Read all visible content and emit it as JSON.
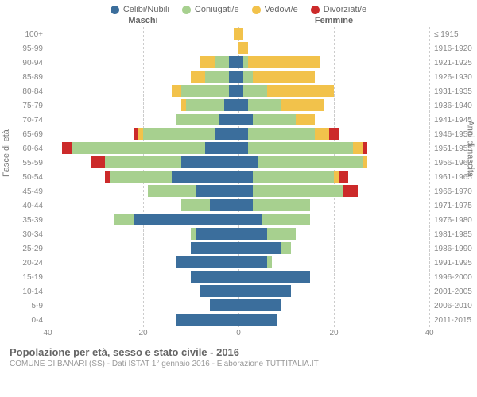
{
  "legend": [
    {
      "label": "Celibi/Nubili",
      "color": "#3b6e9c"
    },
    {
      "label": "Coniugati/e",
      "color": "#a7d08f"
    },
    {
      "label": "Vedovi/e",
      "color": "#f2c24b"
    },
    {
      "label": "Divorziati/e",
      "color": "#cc2a2a"
    }
  ],
  "gender_labels": {
    "male": "Maschi",
    "female": "Femmine"
  },
  "axis_labels": {
    "left": "Fasce di età",
    "right": "Anni di nascita"
  },
  "xaxis": {
    "max": 40,
    "ticks": [
      40,
      20,
      0,
      20,
      40
    ]
  },
  "colors": {
    "celibi": "#3b6e9c",
    "coniugati": "#a7d08f",
    "vedovi": "#f2c24b",
    "divorziati": "#cc2a2a",
    "grid": "#cccccc",
    "bg": "#ffffff"
  },
  "rows": [
    {
      "age": "100+",
      "birth": "≤ 1915",
      "m": {
        "c": 0,
        "g": 0,
        "v": 1,
        "d": 0
      },
      "f": {
        "c": 0,
        "g": 0,
        "v": 1,
        "d": 0
      }
    },
    {
      "age": "95-99",
      "birth": "1916-1920",
      "m": {
        "c": 0,
        "g": 0,
        "v": 0,
        "d": 0
      },
      "f": {
        "c": 0,
        "g": 0,
        "v": 2,
        "d": 0
      }
    },
    {
      "age": "90-94",
      "birth": "1921-1925",
      "m": {
        "c": 2,
        "g": 3,
        "v": 3,
        "d": 0
      },
      "f": {
        "c": 1,
        "g": 1,
        "v": 15,
        "d": 0
      }
    },
    {
      "age": "85-89",
      "birth": "1926-1930",
      "m": {
        "c": 2,
        "g": 5,
        "v": 3,
        "d": 0
      },
      "f": {
        "c": 1,
        "g": 2,
        "v": 13,
        "d": 0
      }
    },
    {
      "age": "80-84",
      "birth": "1931-1935",
      "m": {
        "c": 2,
        "g": 10,
        "v": 2,
        "d": 0
      },
      "f": {
        "c": 1,
        "g": 5,
        "v": 14,
        "d": 0
      }
    },
    {
      "age": "75-79",
      "birth": "1936-1940",
      "m": {
        "c": 3,
        "g": 8,
        "v": 1,
        "d": 0
      },
      "f": {
        "c": 2,
        "g": 7,
        "v": 9,
        "d": 0
      }
    },
    {
      "age": "70-74",
      "birth": "1941-1945",
      "m": {
        "c": 4,
        "g": 9,
        "v": 0,
        "d": 0
      },
      "f": {
        "c": 3,
        "g": 9,
        "v": 4,
        "d": 0
      }
    },
    {
      "age": "65-69",
      "birth": "1946-1950",
      "m": {
        "c": 5,
        "g": 15,
        "v": 1,
        "d": 1
      },
      "f": {
        "c": 2,
        "g": 14,
        "v": 3,
        "d": 2
      }
    },
    {
      "age": "60-64",
      "birth": "1951-1955",
      "m": {
        "c": 7,
        "g": 28,
        "v": 0,
        "d": 2
      },
      "f": {
        "c": 2,
        "g": 22,
        "v": 2,
        "d": 1
      }
    },
    {
      "age": "55-59",
      "birth": "1956-1960",
      "m": {
        "c": 12,
        "g": 16,
        "v": 0,
        "d": 3
      },
      "f": {
        "c": 4,
        "g": 22,
        "v": 1,
        "d": 0
      }
    },
    {
      "age": "50-54",
      "birth": "1961-1965",
      "m": {
        "c": 14,
        "g": 13,
        "v": 0,
        "d": 1
      },
      "f": {
        "c": 3,
        "g": 17,
        "v": 1,
        "d": 2
      }
    },
    {
      "age": "45-49",
      "birth": "1966-1970",
      "m": {
        "c": 9,
        "g": 10,
        "v": 0,
        "d": 0
      },
      "f": {
        "c": 3,
        "g": 19,
        "v": 0,
        "d": 3
      }
    },
    {
      "age": "40-44",
      "birth": "1971-1975",
      "m": {
        "c": 6,
        "g": 6,
        "v": 0,
        "d": 0
      },
      "f": {
        "c": 3,
        "g": 12,
        "v": 0,
        "d": 0
      }
    },
    {
      "age": "35-39",
      "birth": "1976-1980",
      "m": {
        "c": 22,
        "g": 4,
        "v": 0,
        "d": 0
      },
      "f": {
        "c": 5,
        "g": 10,
        "v": 0,
        "d": 0
      }
    },
    {
      "age": "30-34",
      "birth": "1981-1985",
      "m": {
        "c": 9,
        "g": 1,
        "v": 0,
        "d": 0
      },
      "f": {
        "c": 6,
        "g": 6,
        "v": 0,
        "d": 0
      }
    },
    {
      "age": "25-29",
      "birth": "1986-1990",
      "m": {
        "c": 10,
        "g": 0,
        "v": 0,
        "d": 0
      },
      "f": {
        "c": 9,
        "g": 2,
        "v": 0,
        "d": 0
      }
    },
    {
      "age": "20-24",
      "birth": "1991-1995",
      "m": {
        "c": 13,
        "g": 0,
        "v": 0,
        "d": 0
      },
      "f": {
        "c": 6,
        "g": 1,
        "v": 0,
        "d": 0
      }
    },
    {
      "age": "15-19",
      "birth": "1996-2000",
      "m": {
        "c": 10,
        "g": 0,
        "v": 0,
        "d": 0
      },
      "f": {
        "c": 15,
        "g": 0,
        "v": 0,
        "d": 0
      }
    },
    {
      "age": "10-14",
      "birth": "2001-2005",
      "m": {
        "c": 8,
        "g": 0,
        "v": 0,
        "d": 0
      },
      "f": {
        "c": 11,
        "g": 0,
        "v": 0,
        "d": 0
      }
    },
    {
      "age": "5-9",
      "birth": "2006-2010",
      "m": {
        "c": 6,
        "g": 0,
        "v": 0,
        "d": 0
      },
      "f": {
        "c": 9,
        "g": 0,
        "v": 0,
        "d": 0
      }
    },
    {
      "age": "0-4",
      "birth": "2011-2015",
      "m": {
        "c": 13,
        "g": 0,
        "v": 0,
        "d": 0
      },
      "f": {
        "c": 8,
        "g": 0,
        "v": 0,
        "d": 0
      }
    }
  ],
  "footer": {
    "title": "Popolazione per età, sesso e stato civile - 2016",
    "subtitle": "COMUNE DI BANARI (SS) - Dati ISTAT 1° gennaio 2016 - Elaborazione TUTTITALIA.IT"
  }
}
